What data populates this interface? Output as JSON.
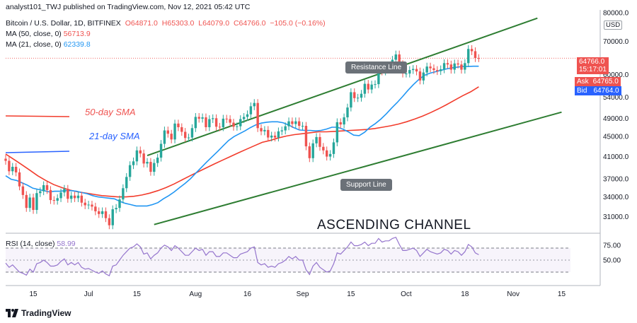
{
  "header": {
    "publisher": "analyst101_TWJ published on TradingView.com, Nov 12, 2021 05:42 UTC",
    "symbol": "Bitcoin / U.S. Dollar, 1D, BITFINEX",
    "open": "O64871.0",
    "high": "H65303.0",
    "low": "L64079.0",
    "close": "C64766.0",
    "change": "−105.0 (−0.16%)",
    "ma50_label": "MA (50, close, 0)",
    "ma50_value": "56713.9",
    "ma21_label": "MA (21, close, 0)",
    "ma21_value": "62339.8",
    "currency": "USD",
    "rsi_label": "RSI (14, close)",
    "rsi_value": "58.99"
  },
  "price_tags": {
    "last": "64766.0",
    "countdown": "15:17:01",
    "ask_label": "Ask",
    "ask": "64765.0",
    "bid_label": "Bid",
    "bid": "64764.0"
  },
  "annotations": {
    "resistance": "Resistance Line",
    "support": "Support Line",
    "sma50": "50-day SMA",
    "sma21": "21-day SMA",
    "pattern": "ASCENDING CHANNEL"
  },
  "footer": {
    "brand": "TradingView"
  },
  "colors": {
    "up": "#26a69a",
    "down": "#ef5350",
    "ma21": "#2196f3",
    "ma50": "#f23c2c",
    "channel": "#2e7d32",
    "rsi": "#9575cd"
  },
  "chart_data": {
    "type": "candlestick",
    "y_scale": "log",
    "y_ticks": [
      31000,
      34000,
      37000,
      41000,
      45000,
      49000,
      54000,
      60000,
      70000,
      80000
    ],
    "y_tick_labels": [
      "31000.0",
      "34000.0",
      "37000.0",
      "41000.0",
      "45000.0",
      "49000.0",
      "54000.0",
      "60000.0",
      "70000.0",
      "80000.0"
    ],
    "x_tick_labels": [
      "15",
      "Jul",
      "15",
      "Aug",
      "16",
      "Sep",
      "15",
      "Oct",
      "18",
      "Nov",
      "15"
    ],
    "x_tick_dates": [
      "2021-06-15",
      "2021-07-01",
      "2021-07-15",
      "2021-08-01",
      "2021-08-16",
      "2021-09-01",
      "2021-09-15",
      "2021-10-01",
      "2021-10-18",
      "2021-11-01",
      "2021-11-15"
    ],
    "closes": [
      40200,
      38300,
      39100,
      38100,
      35700,
      34300,
      32300,
      33900,
      32000,
      34600,
      34900,
      35900,
      35100,
      33500,
      33400,
      33800,
      34700,
      35300,
      33700,
      34200,
      33800,
      34200,
      33100,
      32700,
      32800,
      32500,
      31800,
      31400,
      31800,
      30800,
      29800,
      32100,
      32300,
      33600,
      35400,
      37300,
      39400,
      40100,
      42200,
      41600,
      39700,
      40000,
      38200,
      39800,
      40800,
      43500,
      46300,
      45600,
      44400,
      47800,
      47000,
      46000,
      44700,
      44800,
      46800,
      49300,
      48900,
      49200,
      47000,
      48800,
      49000,
      47100,
      47000,
      48900,
      48800,
      48000,
      47100,
      47200,
      48800,
      49300,
      49900,
      51800,
      52600,
      46800,
      46100,
      46400,
      44800,
      45200,
      44800,
      46100,
      46300,
      47200,
      48300,
      47700,
      48300,
      47300,
      47300,
      43000,
      40700,
      43600,
      44900,
      42900,
      42200,
      41000,
      41500,
      43800,
      48100,
      47600,
      49200,
      51500,
      55300,
      53800,
      53900,
      54900,
      57500,
      56000,
      57300,
      57400,
      61700,
      60900,
      61500,
      62000,
      64300,
      65900,
      63000,
      60300,
      60300,
      61300,
      61600,
      60900,
      58400,
      60600,
      62300,
      61800,
      61300,
      61000,
      61500,
      63300,
      62900,
      61400,
      63200,
      62900,
      61400,
      63300,
      67600,
      66900,
      64800,
      64766
    ],
    "ma21": [
      37500,
      36900,
      36700,
      36300,
      35900,
      35400,
      35200,
      35000,
      34800,
      34900,
      34900,
      35000,
      35000,
      34900,
      34700,
      34500,
      34200,
      34000,
      33900,
      33800,
      33700,
      33300,
      33000,
      32800,
      32600,
      32600,
      32600,
      32800,
      33100,
      33700,
      34200,
      34800,
      35500,
      36200,
      37000,
      38000,
      39000,
      40000,
      41000,
      42000,
      43100,
      44200,
      45000,
      45600,
      46200,
      46900,
      47500,
      47900,
      48100,
      48200,
      48200,
      48000,
      47500,
      46900,
      46400,
      46300,
      46300,
      46200,
      46300,
      46600,
      47000,
      47000,
      46600,
      46000,
      45300,
      45200,
      45900,
      47000,
      47800,
      48800,
      50000,
      51400,
      52700,
      54200,
      55800,
      57300,
      58700,
      59800,
      60400,
      60800,
      61200,
      61600,
      61900,
      62100,
      62300,
      62300,
      62400,
      62400
    ],
    "ma21_start": 0,
    "ma50": [
      41500,
      40500,
      39500,
      38500,
      37500,
      36700,
      36000,
      35500,
      35100,
      34800,
      34600,
      34400,
      34200,
      34100,
      34000,
      34000,
      34100,
      34300,
      34600,
      35000,
      35500,
      36100,
      36800,
      37500,
      38200,
      38900,
      39600,
      40300,
      41000,
      41700,
      42400,
      43100,
      43800,
      44200,
      44700,
      45100,
      45400,
      45600,
      45800,
      46000,
      46000,
      46100,
      46200,
      46300,
      46400,
      46500,
      46700,
      47000,
      47300,
      47700,
      48200,
      48800,
      49500,
      50300,
      51200,
      52200,
      53300,
      54400,
      55400,
      56700
    ],
    "ma50_start": 0,
    "rsi": [
      45,
      38,
      42,
      36,
      30,
      28,
      25,
      35,
      30,
      44,
      46,
      50,
      46,
      40,
      40,
      42,
      48,
      52,
      42,
      46,
      42,
      46,
      38,
      35,
      36,
      33,
      30,
      28,
      32,
      27,
      24,
      40,
      42,
      50,
      58,
      64,
      70,
      72,
      77,
      72,
      60,
      62,
      52,
      58,
      62,
      70,
      75,
      72,
      66,
      74,
      70,
      64,
      58,
      58,
      64,
      70,
      66,
      68,
      58,
      64,
      64,
      56,
      56,
      62,
      62,
      58,
      54,
      54,
      60,
      62,
      64,
      70,
      72,
      46,
      42,
      44,
      38,
      40,
      38,
      44,
      46,
      50,
      56,
      52,
      56,
      50,
      50,
      34,
      26,
      40,
      46,
      38,
      34,
      30,
      32,
      44,
      62,
      60,
      66,
      72,
      80,
      74,
      74,
      76,
      80,
      74,
      78,
      78,
      86,
      80,
      82,
      82,
      86,
      88,
      76,
      66,
      66,
      68,
      70,
      66,
      56,
      62,
      68,
      64,
      62,
      60,
      62,
      68,
      66,
      60,
      66,
      64,
      58,
      64,
      76,
      72,
      62,
      58.99
    ],
    "rsi_ticks": [
      50,
      75
    ],
    "rsi_tick_labels": [
      "50.00",
      "75.00"
    ],
    "rsi_bands": [
      30,
      70
    ],
    "channel": {
      "upper": [
        [
          "2021-07-18",
          41200
        ],
        [
          "2021-11-08",
          78000
        ]
      ],
      "lower": [
        [
          "2021-07-20",
          29900
        ],
        [
          "2021-11-15",
          50400
        ]
      ]
    }
  }
}
